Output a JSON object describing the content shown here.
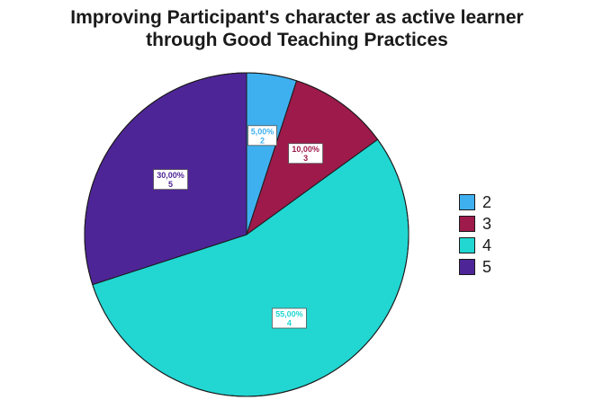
{
  "chart_data": {
    "type": "pie",
    "title": [
      "Improving Participant's character as active learner",
      "through Good Teaching Practices"
    ],
    "slices": [
      {
        "name": "2",
        "percent_label": "5,00%",
        "count": 2,
        "percent": 5,
        "color": "#3fb0ef",
        "label_color": "#3fb0ef"
      },
      {
        "name": "3",
        "percent_label": "10,00%",
        "count": 3,
        "percent": 10,
        "color": "#9e1a4b",
        "label_color": "#9e1a4b"
      },
      {
        "name": "4",
        "percent_label": "55,00%",
        "count": 4,
        "percent": 55,
        "color": "#22d6d2",
        "label_color": "#22d6d2"
      },
      {
        "name": "5",
        "percent_label": "30,00%",
        "count": 5,
        "percent": 30,
        "color": "#4e2597",
        "label_color": "#4e2597"
      }
    ],
    "legend": {
      "position": "right",
      "items": [
        "2",
        "3",
        "4",
        "5"
      ]
    }
  }
}
